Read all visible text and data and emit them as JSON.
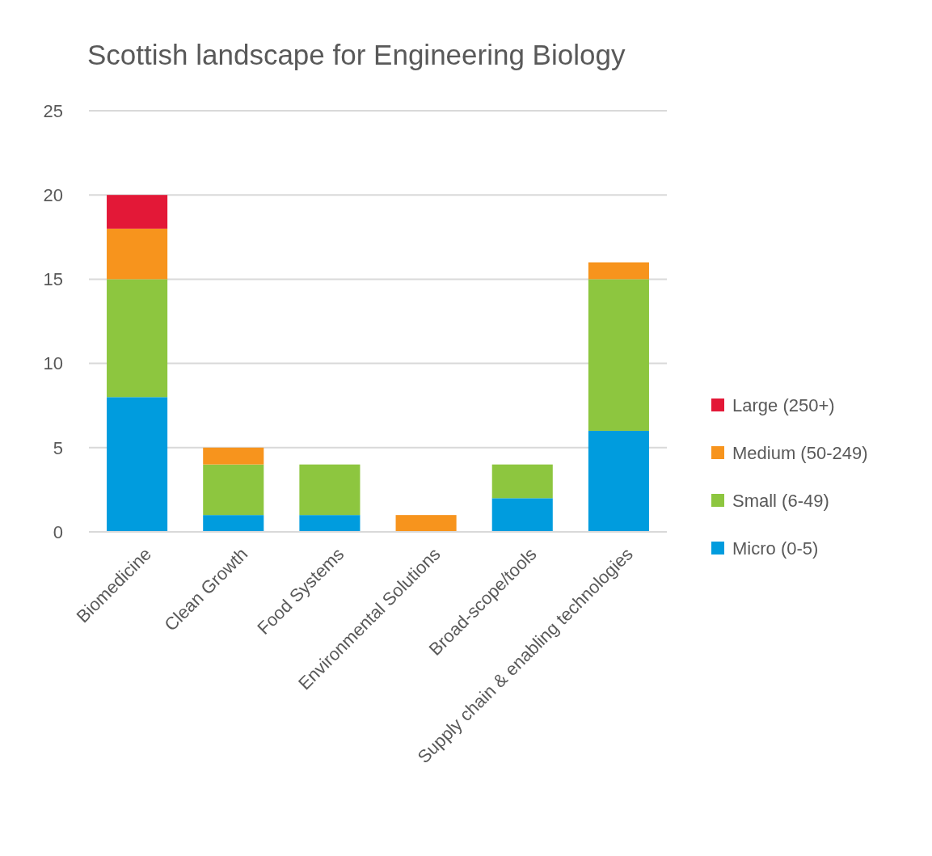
{
  "chart_data": {
    "type": "bar",
    "title": "Scottish landscape for Engineering Biology",
    "stacked": true,
    "categories": [
      "Biomedicine",
      "Clean Growth",
      "Food Systems",
      "Environmental Solutions",
      "Broad-scope/tools",
      "Supply chain & enabling technologies"
    ],
    "series": [
      {
        "name": "Micro (0-5)",
        "color": "#009cde",
        "values": [
          8,
          1,
          1,
          null,
          2,
          6
        ]
      },
      {
        "name": "Small (6-49)",
        "color": "#8dc63f",
        "values": [
          7,
          3,
          3,
          null,
          2,
          9
        ]
      },
      {
        "name": "Medium (50-249)",
        "color": "#f7941d",
        "values": [
          3,
          1,
          null,
          1,
          null,
          1
        ]
      },
      {
        "name": "Large (250+)",
        "color": "#e31837",
        "values": [
          2,
          null,
          null,
          null,
          null,
          null
        ]
      }
    ],
    "ylim": [
      0,
      25
    ],
    "yticks": [
      0,
      5,
      10,
      15,
      20,
      25
    ],
    "grid": "y",
    "legend": "right"
  }
}
